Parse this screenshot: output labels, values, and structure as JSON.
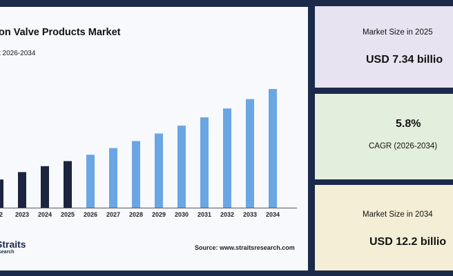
{
  "chart": {
    "title": "on Valve Products Market",
    "subtitle": "t 2026-2034",
    "source": "Source: www.straitsresearch.com"
  },
  "logo": {
    "main": "Straits",
    "sub": "esearch"
  },
  "stats": {
    "market_2025_label": "Market Size in 2025",
    "market_2025_value": "USD 7.34 billio",
    "cagr_value": "5.8%",
    "cagr_label": "CAGR (2026-2034)",
    "market_2034_label": "Market Size in 2034",
    "market_2034_value": "USD 12.2 billio"
  },
  "colors": {
    "historical": "#1b2540",
    "forecast": "#6aa6e3",
    "background": "#1b2a4a"
  },
  "chart_data": {
    "type": "bar",
    "title": "on Valve Products Market",
    "xlabel": "",
    "ylabel": "",
    "categories": [
      "22",
      "2023",
      "2024",
      "2025",
      "2026",
      "2027",
      "2028",
      "2029",
      "2030",
      "2031",
      "2032",
      "2033",
      "2034"
    ],
    "values": [
      6.1,
      6.6,
      7.0,
      7.34,
      7.77,
      8.22,
      8.69,
      9.2,
      9.73,
      10.29,
      10.89,
      11.52,
      12.2
    ],
    "historical_count": 4,
    "ylim": [
      4.2,
      12.2
    ],
    "grid": false
  }
}
